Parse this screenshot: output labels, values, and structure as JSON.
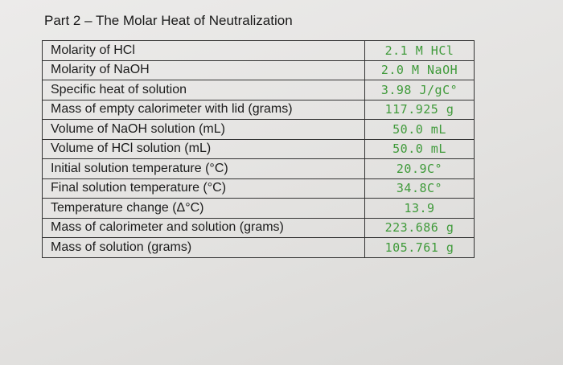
{
  "header": {
    "title": "Part 2 – The Molar Heat of Neutralization"
  },
  "table": {
    "rows": [
      [
        "Molarity of HCl",
        "2.1 M HCl"
      ],
      [
        "Molarity of NaOH",
        "2.0 M NaOH"
      ],
      [
        "Specific heat of solution",
        "3.98 J/gC°"
      ],
      [
        "Mass of empty calorimeter with lid (grams)",
        "117.925 g"
      ],
      [
        "Volume of NaOH solution (mL)",
        "50.0 mL"
      ],
      [
        "Volume of HCl solution (mL)",
        "50.0 mL"
      ],
      [
        "Initial solution temperature (°C)",
        "20.9C°"
      ],
      [
        "Final solution temperature (°C)",
        "34.8C°"
      ],
      [
        "Temperature change (Δ°C)",
        "13.9"
      ],
      [
        "Mass of calorimeter and solution (grams)",
        "223.686 g"
      ],
      [
        "Mass of solution (grams)",
        "105.761 g"
      ]
    ]
  }
}
